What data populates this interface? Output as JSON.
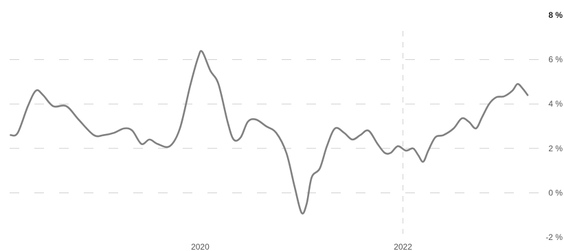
{
  "chart_data": {
    "type": "line",
    "title": "",
    "xlabel": "",
    "ylabel": "",
    "x_ticks": [
      {
        "label": "2020",
        "x": 2020.0
      },
      {
        "label": "2022",
        "x": 2022.0
      }
    ],
    "y_ticks": [
      {
        "label": "8 %",
        "value": 8
      },
      {
        "label": "6 %",
        "value": 6
      },
      {
        "label": "4 %",
        "value": 4
      },
      {
        "label": "2 %",
        "value": 2
      },
      {
        "label": "0 %",
        "value": 0
      },
      {
        "label": "-2 %",
        "value": -2
      }
    ],
    "xlim": [
      2018.12,
      2023.25
    ],
    "ylim": [
      -2,
      8
    ],
    "grid": true,
    "line_color": "#808080",
    "grid_color": "#cfcfcf",
    "series": [
      {
        "points": [
          [
            2018.13,
            2.6
          ],
          [
            2018.2,
            2.7
          ],
          [
            2018.3,
            3.9
          ],
          [
            2018.38,
            4.6
          ],
          [
            2018.45,
            4.4
          ],
          [
            2018.55,
            3.9
          ],
          [
            2018.68,
            3.9
          ],
          [
            2018.8,
            3.3
          ],
          [
            2018.95,
            2.6
          ],
          [
            2019.05,
            2.6
          ],
          [
            2019.15,
            2.7
          ],
          [
            2019.25,
            2.9
          ],
          [
            2019.33,
            2.8
          ],
          [
            2019.42,
            2.2
          ],
          [
            2019.5,
            2.4
          ],
          [
            2019.58,
            2.2
          ],
          [
            2019.7,
            2.1
          ],
          [
            2019.8,
            2.9
          ],
          [
            2019.9,
            4.8
          ],
          [
            2019.98,
            6.1
          ],
          [
            2020.02,
            6.35
          ],
          [
            2020.1,
            5.5
          ],
          [
            2020.18,
            4.9
          ],
          [
            2020.27,
            3.2
          ],
          [
            2020.33,
            2.4
          ],
          [
            2020.4,
            2.5
          ],
          [
            2020.47,
            3.2
          ],
          [
            2020.55,
            3.3
          ],
          [
            2020.65,
            3.0
          ],
          [
            2020.75,
            2.7
          ],
          [
            2020.85,
            1.8
          ],
          [
            2020.93,
            0.3
          ],
          [
            2021.0,
            -0.9
          ],
          [
            2021.05,
            -0.5
          ],
          [
            2021.1,
            0.7
          ],
          [
            2021.18,
            1.1
          ],
          [
            2021.25,
            2.1
          ],
          [
            2021.33,
            2.9
          ],
          [
            2021.42,
            2.7
          ],
          [
            2021.5,
            2.4
          ],
          [
            2021.58,
            2.6
          ],
          [
            2021.66,
            2.8
          ],
          [
            2021.75,
            2.2
          ],
          [
            2021.82,
            1.8
          ],
          [
            2021.88,
            1.8
          ],
          [
            2021.95,
            2.1
          ],
          [
            2022.03,
            1.9
          ],
          [
            2022.1,
            2.0
          ],
          [
            2022.15,
            1.7
          ],
          [
            2022.2,
            1.4
          ],
          [
            2022.25,
            1.9
          ],
          [
            2022.32,
            2.5
          ],
          [
            2022.4,
            2.6
          ],
          [
            2022.5,
            2.9
          ],
          [
            2022.58,
            3.35
          ],
          [
            2022.65,
            3.2
          ],
          [
            2022.72,
            2.9
          ],
          [
            2022.78,
            3.4
          ],
          [
            2022.85,
            4.0
          ],
          [
            2022.92,
            4.3
          ],
          [
            2023.0,
            4.35
          ],
          [
            2023.08,
            4.6
          ],
          [
            2023.13,
            4.9
          ],
          [
            2023.18,
            4.7
          ],
          [
            2023.23,
            4.4
          ]
        ]
      }
    ]
  }
}
